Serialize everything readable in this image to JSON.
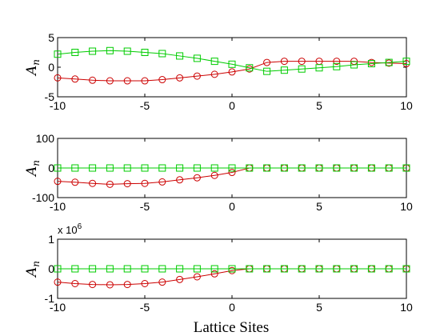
{
  "xlabel": "Lattice Sites",
  "colors": {
    "series_red": "#cc0000",
    "series_green": "#00cc00",
    "axis": "#000000",
    "background": "#ffffff"
  },
  "chart_data": [
    {
      "type": "line",
      "ylabel": "A",
      "ylabel_subscript": "n",
      "xlim": [
        -10,
        10
      ],
      "ylim": [
        -5,
        5
      ],
      "xticks": [
        -10,
        -5,
        0,
        5,
        10
      ],
      "yticks": [
        -5,
        0,
        5
      ],
      "multiplier_label": "",
      "grid": false,
      "x": [
        -10,
        -9,
        -8,
        -7,
        -6,
        -5,
        -4,
        -3,
        -2,
        -1,
        0,
        1,
        2,
        3,
        4,
        5,
        6,
        7,
        8,
        9,
        10
      ],
      "series": [
        {
          "color": "#cc0000",
          "marker": "circle",
          "values": [
            -1.8,
            -2.0,
            -2.2,
            -2.3,
            -2.3,
            -2.3,
            -2.1,
            -1.8,
            -1.5,
            -1.2,
            -0.8,
            -0.3,
            0.8,
            1.0,
            1.0,
            1.0,
            1.0,
            1.0,
            0.8,
            0.7,
            0.6
          ]
        },
        {
          "color": "#00cc00",
          "marker": "square",
          "values": [
            2.2,
            2.5,
            2.7,
            2.8,
            2.7,
            2.5,
            2.3,
            1.9,
            1.5,
            1.0,
            0.5,
            -0.1,
            -0.7,
            -0.5,
            -0.3,
            -0.1,
            0.1,
            0.4,
            0.6,
            0.8,
            1.0
          ]
        }
      ]
    },
    {
      "type": "line",
      "ylabel": "A",
      "ylabel_subscript": "n",
      "xlim": [
        -10,
        10
      ],
      "ylim": [
        -100,
        100
      ],
      "xticks": [
        -10,
        -5,
        0,
        5,
        10
      ],
      "yticks": [
        -100,
        0,
        100
      ],
      "multiplier_label": "",
      "grid": false,
      "x": [
        -10,
        -9,
        -8,
        -7,
        -6,
        -5,
        -4,
        -3,
        -2,
        -1,
        0,
        1,
        2,
        3,
        4,
        5,
        6,
        7,
        8,
        9,
        10
      ],
      "series": [
        {
          "color": "#cc0000",
          "marker": "circle",
          "values": [
            -45,
            -48,
            -52,
            -55,
            -53,
            -52,
            -47,
            -40,
            -33,
            -25,
            -15,
            0,
            0,
            0,
            0,
            0,
            0,
            0,
            0,
            0,
            0
          ]
        },
        {
          "color": "#00cc00",
          "marker": "square",
          "values": [
            0,
            0,
            0,
            0,
            0,
            0,
            0,
            0,
            0,
            0,
            0,
            0,
            0,
            0,
            0,
            0,
            0,
            0,
            0,
            0,
            0
          ]
        }
      ]
    },
    {
      "type": "line",
      "ylabel": "A",
      "ylabel_subscript": "n",
      "xlim": [
        -10,
        10
      ],
      "ylim": [
        -1,
        1
      ],
      "xticks": [
        -10,
        -5,
        0,
        5,
        10
      ],
      "yticks": [
        -1,
        0,
        1
      ],
      "multiplier_label": "x 10",
      "multiplier_exponent": "6",
      "grid": false,
      "x": [
        -10,
        -9,
        -8,
        -7,
        -6,
        -5,
        -4,
        -3,
        -2,
        -1,
        0,
        1,
        2,
        3,
        4,
        5,
        6,
        7,
        8,
        9,
        10
      ],
      "series": [
        {
          "color": "#cc0000",
          "marker": "circle",
          "values": [
            -0.45,
            -0.5,
            -0.53,
            -0.54,
            -0.53,
            -0.5,
            -0.45,
            -0.36,
            -0.27,
            -0.17,
            -0.06,
            0,
            0,
            0,
            0,
            0,
            0,
            0,
            0,
            0,
            0
          ]
        },
        {
          "color": "#00cc00",
          "marker": "square",
          "values": [
            0,
            0,
            0,
            0,
            0,
            0,
            0,
            0,
            0,
            0,
            0,
            0,
            0,
            0,
            0,
            0,
            0,
            0,
            0,
            0,
            0
          ]
        }
      ]
    }
  ]
}
